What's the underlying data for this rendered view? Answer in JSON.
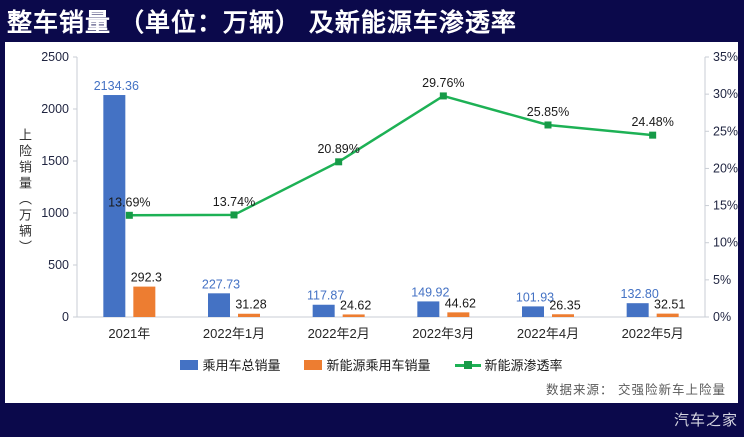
{
  "header": {
    "title": "整车销量 （单位：万辆） 及新能源车渗透率"
  },
  "chart_data": {
    "type": "combo-bar-line",
    "title": "整车销量（单位：万辆）及新能源车渗透率",
    "categories": [
      "2021年",
      "2022年1月",
      "2022年2月",
      "2022年3月",
      "2022年4月",
      "2022年5月"
    ],
    "series": [
      {
        "name": "乘用车总销量",
        "chart": "bar",
        "axis": "left",
        "color": "#4472C4",
        "values": [
          2134.36,
          227.73,
          117.87,
          149.92,
          101.93,
          132.8
        ],
        "labels": [
          "2134.36",
          "227.73",
          "117.87",
          "149.92",
          "101.93",
          "132.80"
        ]
      },
      {
        "name": "新能源乘用车销量",
        "chart": "bar",
        "axis": "left",
        "color": "#ED7D31",
        "values": [
          292.3,
          31.28,
          24.62,
          44.62,
          26.35,
          32.51
        ],
        "labels": [
          "292.3",
          "31.28",
          "24.62",
          "44.62",
          "26.35",
          "32.51"
        ]
      },
      {
        "name": "新能源渗透率",
        "chart": "line",
        "axis": "right",
        "color": "#1DB155",
        "marker_color": "#169A47",
        "values": [
          13.69,
          13.74,
          20.89,
          29.76,
          25.85,
          24.48
        ],
        "labels": [
          "13.69%",
          "13.74%",
          "20.89%",
          "29.76%",
          "25.85%",
          "24.48%"
        ]
      }
    ],
    "left_axis": {
      "title": "上险销量（万辆）",
      "min": 0,
      "max": 2500,
      "step": 500,
      "tick_labels": [
        "0",
        "500",
        "1000",
        "1500",
        "2000",
        "2500"
      ]
    },
    "right_axis": {
      "min": 0,
      "max": 35,
      "step": 5,
      "tick_labels": [
        "0%",
        "5%",
        "10%",
        "15%",
        "20%",
        "25%",
        "30%",
        "35%"
      ]
    },
    "grid": false,
    "legend_position": "bottom"
  },
  "source_note": "数据来源： 交强险新车上险量",
  "footer": {
    "brand": "汽车之家"
  },
  "colors": {
    "background": "#0B094B",
    "panel": "#FFFFFF",
    "axis_line": "#C9CDD4",
    "tick_label": "#1F2440",
    "category_label": "#262626",
    "bar_blue": "#4472C4",
    "bar_orange": "#ED7D31",
    "line_green": "#1DB155",
    "marker_green": "#169A47",
    "label_blue": "#4472C4",
    "label_black": "#1A1A1A"
  }
}
